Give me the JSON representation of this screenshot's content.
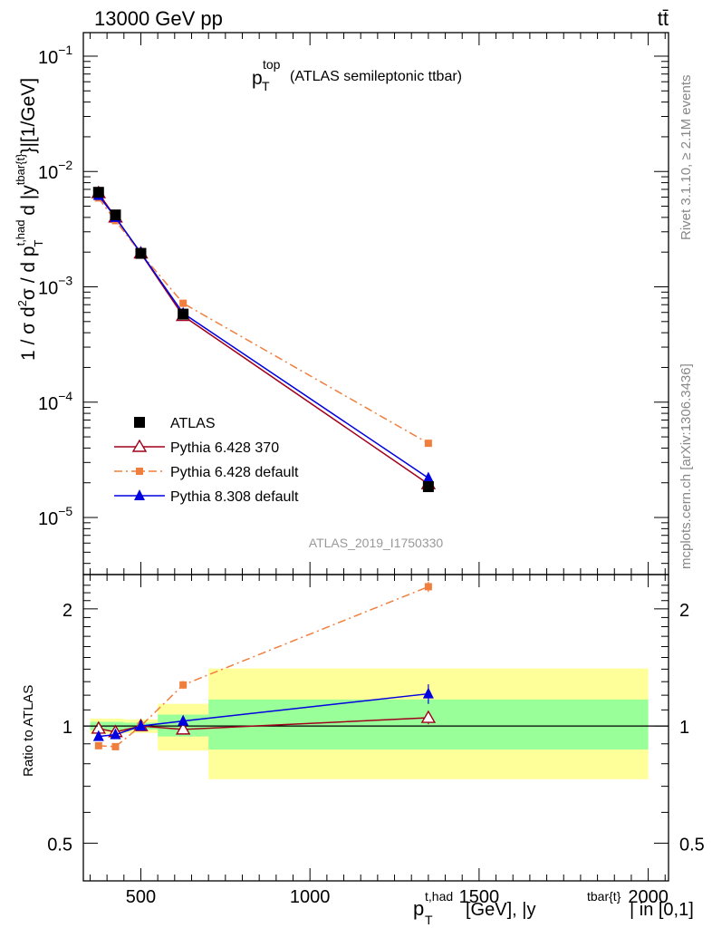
{
  "header": {
    "left": "13000 GeV pp",
    "right": "tt̄"
  },
  "side": {
    "rivet": "Rivet 3.1.10, ≥ 2.1M events",
    "mcplots": "mcplots.cern.ch [arXiv:1306.3436]"
  },
  "chart_data": [
    {
      "type": "scatter",
      "title_main": "p",
      "title_sub": "T",
      "title_sup": "top",
      "title_rest": "(ATLAS semileptonic ttbar)",
      "analysis_label": "ATLAS_2019_I1750330",
      "ylabel": "1 / σ d²σ / d p_T^{t,had} d |y^{tbar{t}}|[1/GeV]",
      "yscale": "log",
      "ylim": [
        3.2e-06,
        0.16
      ],
      "xlim": [
        330,
        2060
      ],
      "y_ticks": [
        {
          "value": 0.1,
          "mant": "10",
          "exp": "−1"
        },
        {
          "value": 0.01,
          "mant": "10",
          "exp": "−2"
        },
        {
          "value": 0.001,
          "mant": "10",
          "exp": "−3"
        },
        {
          "value": 0.0001,
          "mant": "10",
          "exp": "−4"
        },
        {
          "value": 1e-05,
          "mant": "10",
          "exp": "−5"
        }
      ],
      "legend_position": "bottom-left",
      "series": [
        {
          "name": "ATLAS",
          "role": "data",
          "color": "#000000",
          "marker": "square",
          "x": [
            375,
            425,
            500,
            625,
            1350
          ],
          "y": [
            0.0066,
            0.0042,
            0.00195,
            0.00058,
            1.85e-05
          ]
        },
        {
          "name": "Pythia 6.428 370",
          "color": "#a0001c",
          "marker": "open-triangle",
          "line": "solid",
          "x": [
            375,
            425,
            500,
            625,
            1350
          ],
          "y": [
            0.0065,
            0.004,
            0.00195,
            0.00056,
            1.95e-05
          ]
        },
        {
          "name": "Pythia 6.428 default",
          "color": "#f07e3c",
          "marker": "square-small",
          "line": "dashdot",
          "x": [
            375,
            425,
            500,
            625,
            1350
          ],
          "y": [
            0.0059,
            0.00375,
            0.00195,
            0.00072,
            4.4e-05
          ]
        },
        {
          "name": "Pythia 8.308 default",
          "color": "#0000e0",
          "marker": "filled-triangle",
          "line": "solid",
          "x": [
            375,
            425,
            500,
            625,
            1350
          ],
          "y": [
            0.0062,
            0.004,
            0.00197,
            0.00059,
            2.2e-05
          ]
        }
      ]
    },
    {
      "type": "scatter",
      "ylabel": "Ratio to ATLAS",
      "xlabel_main": "p",
      "xlabel_sub": "T",
      "xlabel_sup": "t,had",
      "xlabel_mid": "[GeV], |y",
      "xlabel_sup2": "tbar{t}",
      "xlabel_end": "| in [0,1]",
      "yscale": "log",
      "ylim": [
        0.4,
        2.45
      ],
      "xlim": [
        330,
        2060
      ],
      "reference_line": 1,
      "y_ticks": [
        {
          "value": 2,
          "label": "2"
        },
        {
          "value": 1,
          "label": "1"
        },
        {
          "value": 0.5,
          "label": "0.5"
        }
      ],
      "x_ticks": [
        {
          "value": 500,
          "label": "500"
        },
        {
          "value": 1000,
          "label": "1000"
        },
        {
          "value": 1500,
          "label": "1500"
        },
        {
          "value": 2000,
          "label": "2000"
        }
      ],
      "bins": [
        {
          "lo": 350,
          "hi": 400,
          "stat": [
            0.975,
            1.025
          ],
          "total": [
            0.955,
            1.045
          ]
        },
        {
          "lo": 400,
          "hi": 450,
          "stat": [
            0.975,
            1.025
          ],
          "total": [
            0.955,
            1.045
          ]
        },
        {
          "lo": 450,
          "hi": 550,
          "stat": [
            0.98,
            1.02
          ],
          "total": [
            0.96,
            1.04
          ]
        },
        {
          "lo": 550,
          "hi": 700,
          "stat": [
            0.94,
            1.07
          ],
          "total": [
            0.865,
            1.14
          ]
        },
        {
          "lo": 700,
          "hi": 2000,
          "stat": [
            0.87,
            1.17
          ],
          "total": [
            0.73,
            1.405
          ]
        }
      ],
      "series": [
        {
          "name": "Pythia 6.428 370",
          "color": "#a0001c",
          "marker": "open-triangle",
          "line": "solid",
          "x": [
            375,
            425,
            500,
            625,
            1350
          ],
          "y": [
            0.985,
            0.965,
            1.0,
            0.98,
            1.05
          ],
          "err": [
            0.01,
            0.01,
            0.01,
            0.015,
            0.04
          ]
        },
        {
          "name": "Pythia 6.428 default",
          "color": "#f07e3c",
          "marker": "square-small",
          "line": "dashdot",
          "x": [
            375,
            425,
            500,
            625,
            1350
          ],
          "y": [
            0.89,
            0.885,
            1.0,
            1.275,
            2.28
          ],
          "err": [
            0.01,
            0.01,
            0.01,
            0.03,
            0.07
          ]
        },
        {
          "name": "Pythia 8.308 default",
          "color": "#0000e0",
          "marker": "filled-triangle",
          "line": "solid",
          "x": [
            375,
            425,
            500,
            625,
            1350
          ],
          "y": [
            0.94,
            0.95,
            1.0,
            1.03,
            1.21
          ],
          "err": [
            0.01,
            0.01,
            0.01,
            0.03,
            0.07
          ]
        }
      ]
    }
  ]
}
